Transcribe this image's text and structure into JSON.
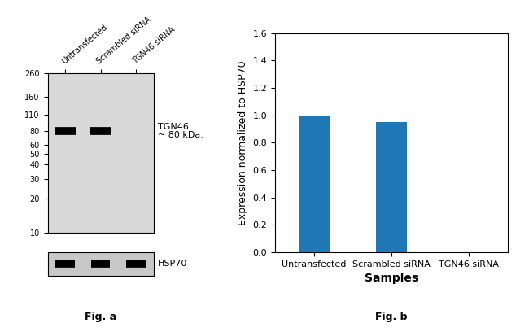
{
  "chart_data": [
    {
      "type": "blot",
      "caption": "Fig. a",
      "categories": [
        "Untransfected",
        "Scrambled siRNA",
        "TGN46 siRNA"
      ],
      "log": "y",
      "ylim": [
        10,
        260
      ],
      "yticks": [
        260,
        160,
        110,
        80,
        60,
        50,
        40,
        30,
        20,
        10
      ],
      "series": [
        {
          "name": "TGN46",
          "values": [
            80,
            80,
            null
          ],
          "annotation": "~ 80 kDa."
        }
      ],
      "loading_control": "HSP70"
    },
    {
      "type": "bar",
      "caption": "Fig. b",
      "categories": [
        "Untransfected",
        "Scrambled siRNA",
        "TGN46 siRNA"
      ],
      "values": [
        1.0,
        0.95,
        0.0
      ],
      "xlabel": "Samples",
      "ylabel": "Expression normalized to HSP70",
      "ylim": [
        0,
        1.6
      ],
      "yticks": [
        {
          "value": 0,
          "label": "0.0"
        },
        0.2,
        0.4,
        0.6,
        0.8,
        {
          "value": 1,
          "label": "1.0"
        },
        1.2,
        1.4,
        1.6
      ],
      "grid": false
    }
  ]
}
